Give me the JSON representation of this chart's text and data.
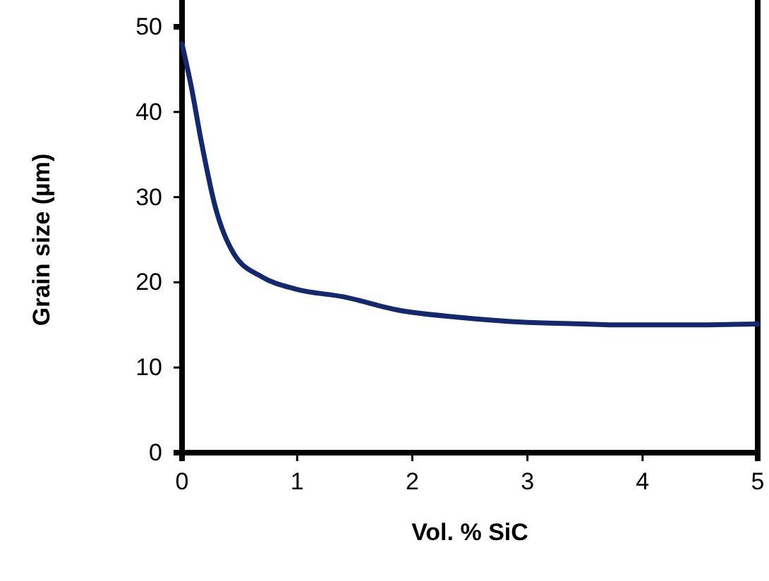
{
  "chart_data": {
    "type": "line",
    "xlabel": "Vol. % SiC",
    "ylabel": "Grain size (µm)",
    "x": [
      0,
      0.08,
      0.165,
      0.288,
      0.453,
      0.7,
      0.99,
      1.4,
      1.89,
      2.4,
      3.0,
      3.5,
      3.74,
      4.3,
      5
    ],
    "series": [
      {
        "color": "#14286e",
        "values": [
          48,
          43,
          36.7,
          28.9,
          23.3,
          20.6,
          19.2,
          18.3,
          16.7,
          15.9,
          15.3,
          15.1,
          15,
          15,
          15.1
        ]
      }
    ],
    "xlim": [
      0,
      5
    ],
    "xticks": [
      0,
      1,
      2,
      3,
      4,
      5
    ],
    "ylim": [
      0,
      50
    ],
    "yticks": [
      0,
      10,
      20,
      30,
      40,
      50
    ],
    "grid": false,
    "marker": "none",
    "line_style": "solid"
  }
}
